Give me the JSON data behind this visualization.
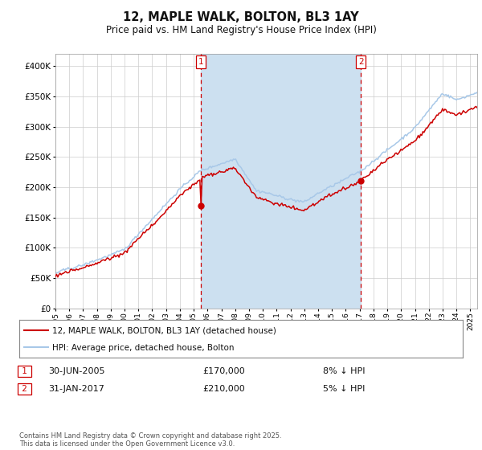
{
  "title": "12, MAPLE WALK, BOLTON, BL3 1AY",
  "subtitle": "Price paid vs. HM Land Registry's House Price Index (HPI)",
  "sale1_date": "30-JUN-2005",
  "sale1_price": 170000,
  "sale1_label": "8% ↓ HPI",
  "sale2_date": "31-JAN-2017",
  "sale2_price": 210000,
  "sale2_label": "5% ↓ HPI",
  "legend_line1": "12, MAPLE WALK, BOLTON, BL3 1AY (detached house)",
  "legend_line2": "HPI: Average price, detached house, Bolton",
  "footer": "Contains HM Land Registry data © Crown copyright and database right 2025.\nThis data is licensed under the Open Government Licence v3.0.",
  "hpi_color": "#a8c8e8",
  "property_color": "#cc0000",
  "vline_color": "#cc0000",
  "shade_color": "#cce0f0",
  "background_color": "#ffffff",
  "grid_color": "#cccccc",
  "ylim": [
    0,
    420000
  ],
  "yticks": [
    0,
    50000,
    100000,
    150000,
    200000,
    250000,
    300000,
    350000,
    400000
  ],
  "sale1_year": 2005.5,
  "sale2_year": 2017.083
}
